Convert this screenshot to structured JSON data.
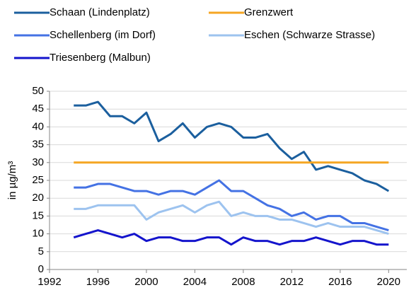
{
  "chart_data": {
    "type": "line",
    "ylabel": "in µg/m³",
    "x": [
      1994,
      1995,
      1996,
      1997,
      1998,
      1999,
      2000,
      2001,
      2002,
      2003,
      2004,
      2005,
      2006,
      2007,
      2008,
      2009,
      2010,
      2011,
      2012,
      2013,
      2014,
      2015,
      2016,
      2017,
      2018,
      2019,
      2020
    ],
    "series": [
      {
        "name": "Schaan (Lindenplatz)",
        "color": "#1b5f9e",
        "values": [
          46,
          46,
          47,
          43,
          43,
          41,
          44,
          36,
          38,
          41,
          37,
          40,
          41,
          40,
          37,
          37,
          38,
          34,
          31,
          33,
          28,
          29,
          28,
          27,
          25,
          24,
          22
        ]
      },
      {
        "name": "Grenzwert",
        "color": "#f5a623",
        "values": [
          30,
          30,
          30,
          30,
          30,
          30,
          30,
          30,
          30,
          30,
          30,
          30,
          30,
          30,
          30,
          30,
          30,
          30,
          30,
          30,
          30,
          30,
          30,
          30,
          30,
          30,
          30
        ]
      },
      {
        "name": "Schellenberg (im Dorf)",
        "color": "#4472e4",
        "values": [
          23,
          23,
          24,
          24,
          23,
          22,
          22,
          21,
          22,
          22,
          21,
          23,
          25,
          22,
          22,
          20,
          18,
          17,
          15,
          16,
          14,
          15,
          15,
          13,
          13,
          12,
          11
        ]
      },
      {
        "name": "Eschen (Schwarze Strasse)",
        "color": "#9dc3ef",
        "values": [
          17,
          17,
          18,
          18,
          18,
          18,
          14,
          16,
          17,
          18,
          16,
          18,
          19,
          15,
          16,
          15,
          15,
          14,
          14,
          13,
          12,
          13,
          12,
          12,
          12,
          11,
          10
        ]
      },
      {
        "name": "Triesenberg (Malbun)",
        "color": "#1414cc",
        "values": [
          9,
          10,
          11,
          10,
          9,
          10,
          8,
          9,
          9,
          8,
          8,
          9,
          9,
          7,
          9,
          8,
          8,
          7,
          8,
          8,
          9,
          8,
          7,
          8,
          8,
          7,
          7
        ]
      }
    ],
    "xlim": [
      1992,
      2021.5
    ],
    "xticks": [
      1992,
      1996,
      2000,
      2004,
      2008,
      2012,
      2016,
      2020
    ],
    "ylim": [
      0,
      50
    ],
    "yticks": [
      0,
      5,
      10,
      15,
      20,
      25,
      30,
      35,
      40,
      45,
      50
    ],
    "grid": true
  }
}
